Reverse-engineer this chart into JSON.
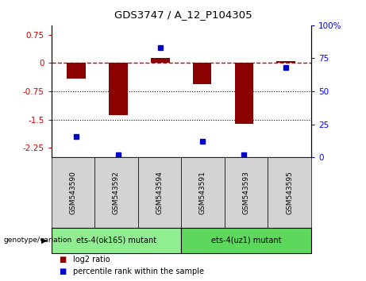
{
  "title": "GDS3747 / A_12_P104305",
  "samples": [
    "GSM543590",
    "GSM543592",
    "GSM543594",
    "GSM543591",
    "GSM543593",
    "GSM543595"
  ],
  "log2_ratio": [
    -0.42,
    -1.38,
    0.13,
    -0.55,
    -1.62,
    0.04
  ],
  "percentile_rank": [
    16,
    2,
    83,
    12,
    2,
    68
  ],
  "ylim_left": [
    -2.5,
    1.0
  ],
  "ylim_right": [
    0,
    100
  ],
  "yticks_left": [
    0.75,
    0,
    -0.75,
    -1.5,
    -2.25
  ],
  "yticks_right": [
    100,
    75,
    50,
    25,
    0
  ],
  "hlines": [
    -0.75,
    -1.5
  ],
  "bar_color": "#8B0000",
  "dot_color": "#0000CC",
  "dashed_line_color": "#CC0000",
  "group1_label": "ets-4(ok165) mutant",
  "group2_label": "ets-4(uz1) mutant",
  "group1_color": "#90EE90",
  "group2_color": "#5DD85D",
  "sample_box_color": "#D3D3D3",
  "group_label_prefix": "genotype/variation",
  "legend_log2": "log2 ratio",
  "legend_pct": "percentile rank within the sample",
  "bar_width": 0.45
}
